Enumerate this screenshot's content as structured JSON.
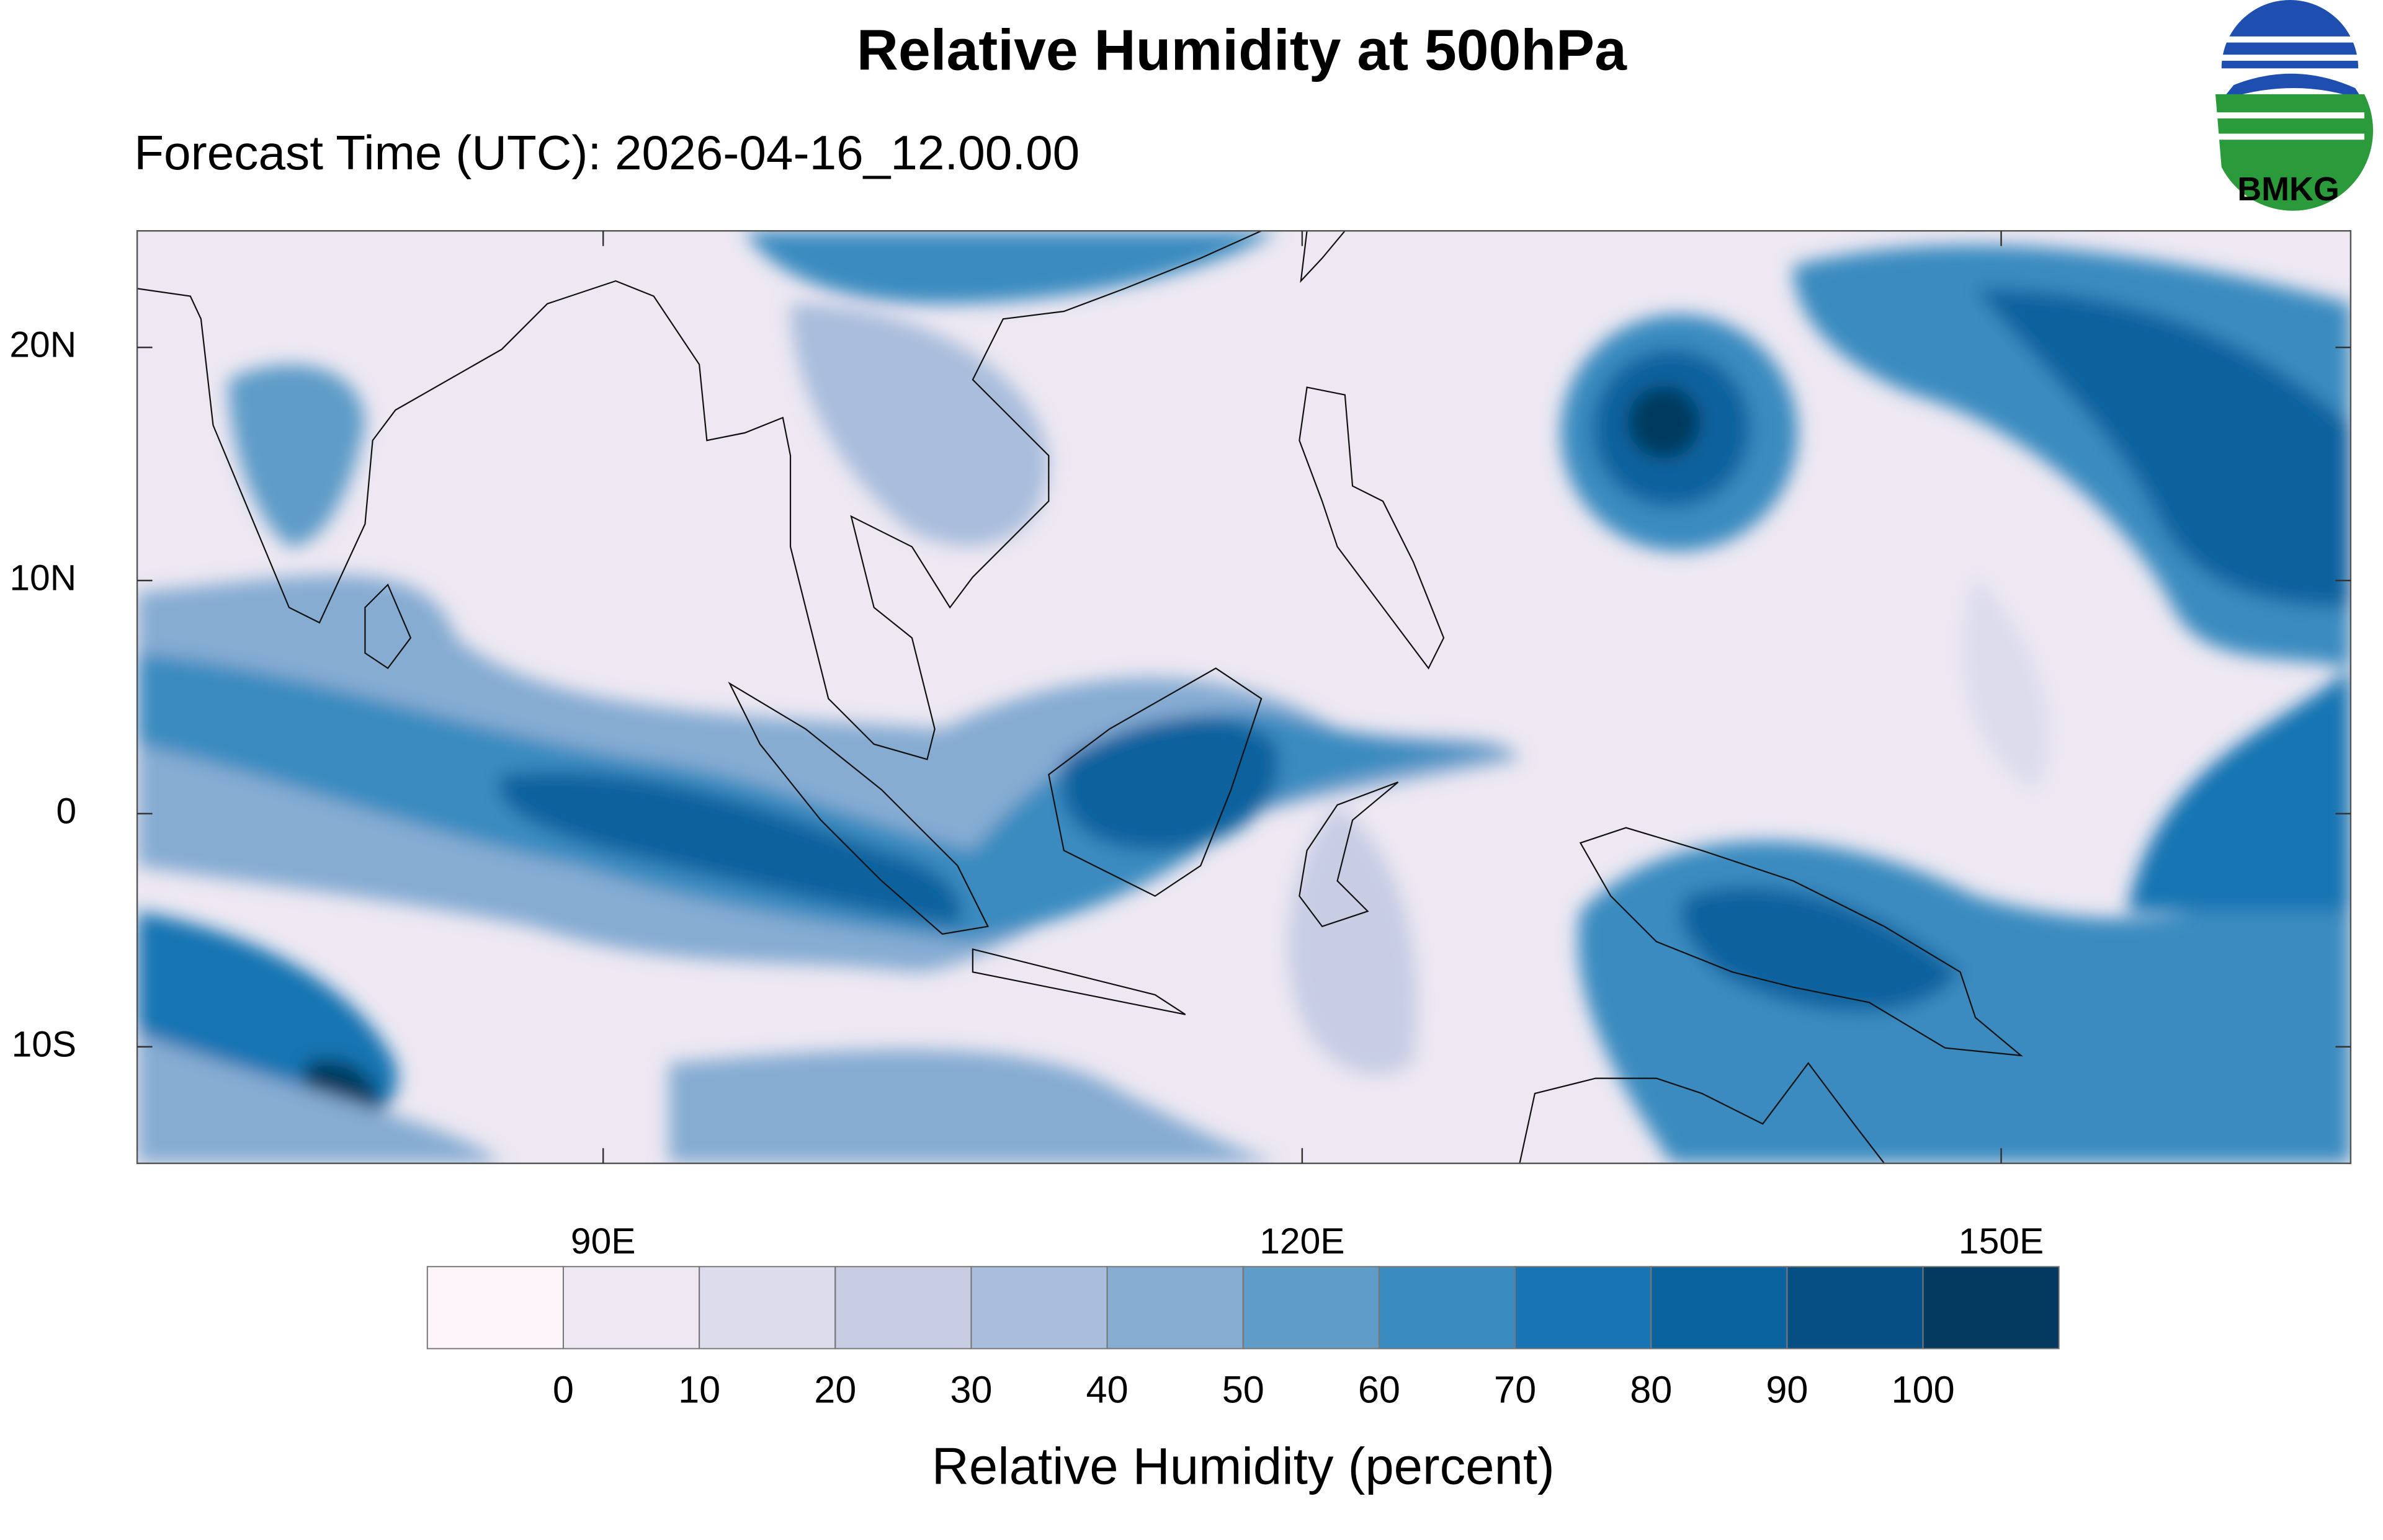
{
  "header": {
    "title": "Relative Humidity at 500hPa",
    "subtitle": "Forecast Time (UTC): 2026-04-16_12.00.00",
    "logo_text": "BMKG"
  },
  "map": {
    "lon_range": [
      70,
      165
    ],
    "lat_range": [
      -15,
      25
    ],
    "lat_ticks": [
      {
        "value": 20,
        "label": "20N"
      },
      {
        "value": 10,
        "label": "10N"
      },
      0,
      {
        "value": -10,
        "label": "10S"
      }
    ],
    "lon_ticks": [
      {
        "value": 90,
        "label": "90E"
      },
      {
        "value": 120,
        "label": "120E"
      },
      {
        "value": 150,
        "label": "150E"
      }
    ]
  },
  "colorbar": {
    "title": "Relative Humidity (percent)",
    "levels": [
      0,
      10,
      20,
      30,
      40,
      50,
      60,
      70,
      80,
      90,
      100
    ],
    "colors": [
      "#fdf5fa",
      "#ede8f2",
      "#dcdcec",
      "#c8cde4",
      "#a9bddc",
      "#86acd2",
      "#5f9cc8",
      "#3a8bc0",
      "#1874b2",
      "#0a629e",
      "#064f84",
      "#043a5f"
    ]
  }
}
